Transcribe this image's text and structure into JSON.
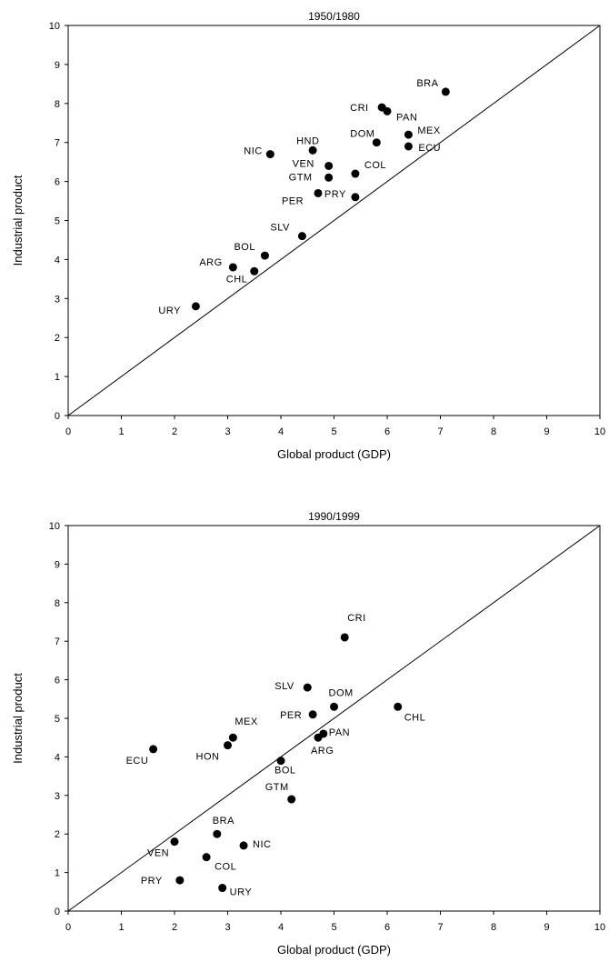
{
  "chart_data": [
    {
      "type": "scatter",
      "title": "1950/1980",
      "xlabel": "Global product (GDP)",
      "ylabel": "Industrial product",
      "xlim": [
        0,
        10
      ],
      "ylim": [
        0,
        10
      ],
      "ticks": [
        "0",
        "1",
        "2",
        "3",
        "4",
        "5",
        "6",
        "7",
        "8",
        "9",
        "10"
      ],
      "reference_line": "y = x",
      "grid": false,
      "points": [
        {
          "label": "BRA",
          "x": 7.1,
          "y": 8.3
        },
        {
          "label": "CRI",
          "x": 5.9,
          "y": 7.9
        },
        {
          "label": "PAN",
          "x": 6.0,
          "y": 7.8
        },
        {
          "label": "MEX",
          "x": 6.4,
          "y": 7.2
        },
        {
          "label": "ECU",
          "x": 6.4,
          "y": 6.9
        },
        {
          "label": "DOM",
          "x": 5.8,
          "y": 7.0
        },
        {
          "label": "HND",
          "x": 4.6,
          "y": 6.8
        },
        {
          "label": "NIC",
          "x": 3.8,
          "y": 6.7
        },
        {
          "label": "VEN",
          "x": 4.9,
          "y": 6.4
        },
        {
          "label": "COL",
          "x": 5.4,
          "y": 6.2
        },
        {
          "label": "GTM",
          "x": 4.9,
          "y": 6.1
        },
        {
          "label": "PER",
          "x": 4.7,
          "y": 5.7
        },
        {
          "label": "PRY",
          "x": 5.4,
          "y": 5.6
        },
        {
          "label": "SLV",
          "x": 4.4,
          "y": 4.6
        },
        {
          "label": "BOL",
          "x": 3.7,
          "y": 4.1
        },
        {
          "label": "ARG",
          "x": 3.1,
          "y": 3.8
        },
        {
          "label": "CHL",
          "x": 3.5,
          "y": 3.7
        },
        {
          "label": "URY",
          "x": 2.4,
          "y": 2.8
        }
      ]
    },
    {
      "type": "scatter",
      "title": "1990/1999",
      "xlabel": "Global product (GDP)",
      "ylabel": "Industrial product",
      "xlim": [
        0,
        10
      ],
      "ylim": [
        0,
        10
      ],
      "ticks": [
        "0",
        "1",
        "2",
        "3",
        "4",
        "5",
        "6",
        "7",
        "8",
        "9",
        "10"
      ],
      "reference_line": "y = x",
      "grid": false,
      "points": [
        {
          "label": "CRI",
          "x": 5.2,
          "y": 7.1
        },
        {
          "label": "SLV",
          "x": 4.5,
          "y": 5.8
        },
        {
          "label": "DOM",
          "x": 5.0,
          "y": 5.3
        },
        {
          "label": "CHL",
          "x": 6.2,
          "y": 5.3
        },
        {
          "label": "PER",
          "x": 4.6,
          "y": 5.1
        },
        {
          "label": "PAN",
          "x": 4.8,
          "y": 4.6
        },
        {
          "label": "ARG",
          "x": 4.7,
          "y": 4.5
        },
        {
          "label": "MEX",
          "x": 3.1,
          "y": 4.5
        },
        {
          "label": "HON",
          "x": 3.0,
          "y": 4.3
        },
        {
          "label": "ECU",
          "x": 1.6,
          "y": 4.2
        },
        {
          "label": "BOL",
          "x": 4.0,
          "y": 3.9
        },
        {
          "label": "GTM",
          "x": 4.2,
          "y": 2.9
        },
        {
          "label": "BRA",
          "x": 2.8,
          "y": 2.0
        },
        {
          "label": "VEN",
          "x": 2.0,
          "y": 1.8
        },
        {
          "label": "NIC",
          "x": 3.3,
          "y": 1.7
        },
        {
          "label": "COL",
          "x": 2.6,
          "y": 1.4
        },
        {
          "label": "PRY",
          "x": 2.1,
          "y": 0.8
        },
        {
          "label": "URY",
          "x": 2.9,
          "y": 0.6
        }
      ]
    }
  ]
}
